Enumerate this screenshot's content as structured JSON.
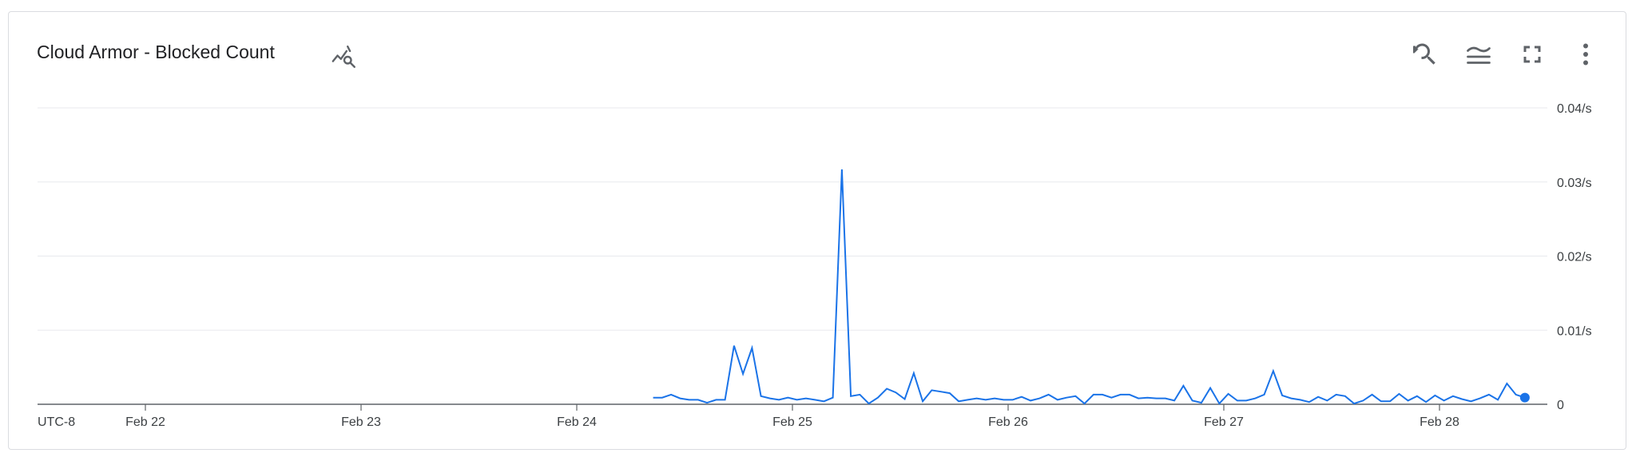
{
  "header": {
    "title": "Cloud Armor - Blocked Count",
    "title_icon": "chart-search-icon",
    "toolbar": [
      {
        "name": "zoom-reset-icon"
      },
      {
        "name": "legend-toggle-icon"
      },
      {
        "name": "fullscreen-icon"
      },
      {
        "name": "more-vert-icon"
      }
    ]
  },
  "colors": {
    "series": "#1a73e8",
    "grid": "#e8eaed",
    "axis": "#5f6368"
  },
  "chart_data": {
    "type": "line",
    "title": "Cloud Armor - Blocked Count",
    "timezone_label": "UTC-8",
    "x_tick_labels": [
      "Feb 22",
      "Feb 23",
      "Feb 24",
      "Feb 25",
      "Feb 26",
      "Feb 27",
      "Feb 28"
    ],
    "y_tick_labels": [
      "0",
      "0.01/s",
      "0.02/s",
      "0.03/s",
      "0.04/s"
    ],
    "ylim": [
      0,
      0.04
    ],
    "xlim": [
      "2024-02-21 12:00",
      "2024-02-28 12:00"
    ],
    "grid": true,
    "series": [
      {
        "x_start_hours_relative_feb22": 56.5,
        "step_hours": 1,
        "values": [
          0.0009,
          0.0009,
          0.0013,
          0.0008,
          0.0006,
          0.0006,
          0.0002,
          0.0006,
          0.0006,
          0.0079,
          0.0041,
          0.0076,
          0.0011,
          0.0008,
          0.0006,
          0.0009,
          0.0006,
          0.0008,
          0.0006,
          0.0004,
          0.0009,
          0.0317,
          0.0011,
          0.0013,
          0.0001,
          0.0009,
          0.0021,
          0.0016,
          0.0007,
          0.0042,
          0.0004,
          0.0019,
          0.0017,
          0.0015,
          0.0004,
          0.0006,
          0.0008,
          0.0006,
          0.0008,
          0.0006,
          0.0006,
          0.001,
          0.0005,
          0.0008,
          0.0013,
          0.0006,
          0.0009,
          0.0011,
          0.0001,
          0.0013,
          0.0013,
          0.0009,
          0.0013,
          0.0013,
          0.0008,
          0.0009,
          0.0008,
          0.0008,
          0.0005,
          0.0025,
          0.0005,
          0.0002,
          0.0022,
          0.0001,
          0.0014,
          0.0005,
          0.0005,
          0.0008,
          0.0013,
          0.0045,
          0.0012,
          0.0008,
          0.0006,
          0.0003,
          0.001,
          0.0005,
          0.0013,
          0.0011,
          0.0001,
          0.0005,
          0.0013,
          0.0004,
          0.0004,
          0.0014,
          0.0005,
          0.0011,
          0.0003,
          0.0012,
          0.0005,
          0.0011,
          0.0007,
          0.0004,
          0.0008,
          0.0013,
          0.0006,
          0.0028,
          0.0013,
          0.0009
        ]
      }
    ]
  }
}
